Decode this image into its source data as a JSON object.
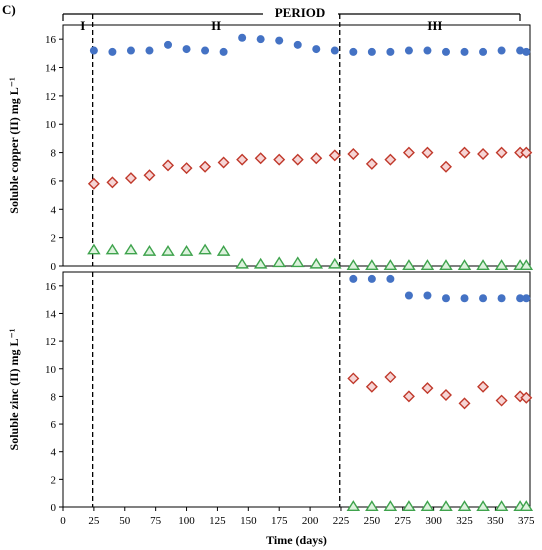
{
  "figure": {
    "panel_label": "C)",
    "period_title": "PERIOD",
    "periods": [
      "I",
      "II",
      "III"
    ]
  },
  "colors": {
    "blue": "#4472C4",
    "red": "#C0392B",
    "green": "#3FA34D",
    "red_fill": "#F6D5D5",
    "green_fill": "#DDF2DD"
  },
  "chart_data": [
    {
      "type": "scatter",
      "title": "",
      "xlabel": "",
      "ylabel": "Soluble copper (II) mg L⁻¹",
      "xlim": [
        0,
        378
      ],
      "ylim": [
        0,
        17
      ],
      "yticks": [
        0,
        2,
        4,
        6,
        8,
        10,
        12,
        14,
        16
      ],
      "period_boundaries": [
        24,
        224
      ],
      "series": [
        {
          "marker": "circle",
          "x": [
            25,
            40,
            55,
            70,
            85,
            100,
            115,
            130,
            145,
            160,
            175,
            190,
            205,
            220,
            235,
            250,
            265,
            280,
            295,
            310,
            325,
            340,
            355,
            370,
            375
          ],
          "y": [
            15.2,
            15.1,
            15.2,
            15.2,
            15.6,
            15.3,
            15.2,
            15.1,
            16.1,
            16.0,
            15.9,
            15.6,
            15.3,
            15.2,
            15.1,
            15.1,
            15.1,
            15.2,
            15.2,
            15.1,
            15.1,
            15.1,
            15.2,
            15.2,
            15.1
          ]
        },
        {
          "marker": "diamond",
          "x": [
            25,
            40,
            55,
            70,
            85,
            100,
            115,
            130,
            145,
            160,
            175,
            190,
            205,
            220,
            235,
            250,
            265,
            280,
            295,
            310,
            325,
            340,
            355,
            370,
            375
          ],
          "y": [
            5.8,
            5.9,
            6.2,
            6.4,
            7.1,
            6.9,
            7.0,
            7.3,
            7.5,
            7.6,
            7.5,
            7.5,
            7.6,
            7.8,
            7.9,
            7.2,
            7.5,
            8.0,
            8.0,
            7.0,
            8.0,
            7.9,
            8.0,
            8.0,
            8.0
          ]
        },
        {
          "marker": "triangle",
          "x": [
            25,
            40,
            55,
            70,
            85,
            100,
            115,
            130,
            145,
            160,
            175,
            190,
            205,
            220,
            235,
            250,
            265,
            280,
            295,
            310,
            325,
            340,
            355,
            370,
            375
          ],
          "y": [
            1.1,
            1.1,
            1.1,
            1.0,
            1.0,
            1.0,
            1.1,
            1.0,
            0.1,
            0.1,
            0.2,
            0.2,
            0.1,
            0.1,
            0.0,
            0.0,
            0.0,
            0.0,
            0.0,
            0.0,
            0.0,
            0.0,
            0.0,
            0.0,
            0.0
          ]
        }
      ]
    },
    {
      "type": "scatter",
      "title": "",
      "xlabel": "Time  (days)",
      "ylabel": "Soluble zinc (II) mg L⁻¹",
      "xlim": [
        0,
        378
      ],
      "ylim": [
        0,
        17
      ],
      "xticks": [
        0,
        25,
        50,
        75,
        100,
        125,
        150,
        175,
        200,
        225,
        250,
        275,
        300,
        325,
        350,
        375
      ],
      "yticks": [
        0,
        2,
        4,
        6,
        8,
        10,
        12,
        14,
        16
      ],
      "period_boundaries": [
        24,
        224
      ],
      "series": [
        {
          "marker": "circle",
          "x": [
            235,
            250,
            265,
            280,
            295,
            310,
            325,
            340,
            355,
            370,
            375
          ],
          "y": [
            16.5,
            16.5,
            16.5,
            15.3,
            15.3,
            15.1,
            15.1,
            15.1,
            15.1,
            15.1,
            15.1
          ]
        },
        {
          "marker": "diamond",
          "x": [
            235,
            250,
            265,
            280,
            295,
            310,
            325,
            340,
            355,
            370,
            375
          ],
          "y": [
            9.3,
            8.7,
            9.4,
            8.0,
            8.6,
            8.1,
            7.5,
            8.7,
            7.7,
            8.0,
            7.9
          ]
        },
        {
          "marker": "triangle",
          "x": [
            235,
            250,
            265,
            280,
            295,
            310,
            325,
            340,
            355,
            370,
            375
          ],
          "y": [
            0.0,
            0.0,
            0.0,
            0.0,
            0.0,
            0.0,
            0.0,
            0.0,
            0.0,
            0.0,
            0.0
          ]
        }
      ]
    }
  ]
}
